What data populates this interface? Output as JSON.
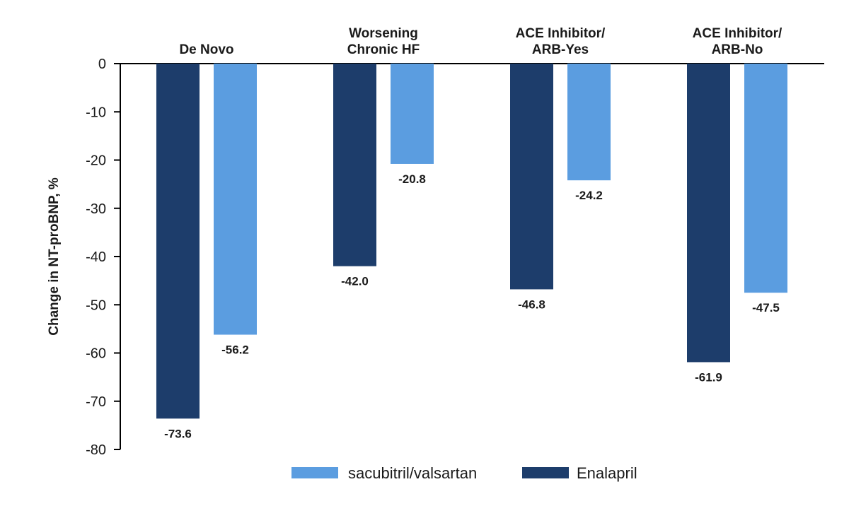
{
  "chart_data": {
    "type": "bar",
    "title": "",
    "xlabel": "",
    "ylabel": "Change in NT-proBNP, %",
    "ylim": [
      -80,
      0
    ],
    "yticks": [
      0,
      -10,
      -20,
      -30,
      -40,
      -50,
      -60,
      -70,
      -80
    ],
    "grid": false,
    "legend_position": "bottom-center",
    "categories": [
      {
        "lines": [
          "De Novo"
        ]
      },
      {
        "lines": [
          "Worsening",
          "Chronic HF"
        ]
      },
      {
        "lines": [
          "ACE Inhibitor/",
          "ARB-Yes"
        ]
      },
      {
        "lines": [
          "ACE Inhibitor/",
          "ARB-No"
        ]
      }
    ],
    "series": [
      {
        "name": "Enalapril",
        "color": "#1d3d6b",
        "values": [
          -73.6,
          -42.0,
          -46.8,
          -61.9
        ],
        "labels": [
          "-73.6",
          "-42.0",
          "-46.8",
          "-61.9"
        ]
      },
      {
        "name": "sacubitril/valsartan",
        "color": "#5b9de0",
        "values": [
          -56.2,
          -20.8,
          -24.2,
          -47.5
        ],
        "labels": [
          "-56.2",
          "-20.8",
          "-24.2",
          "-47.5"
        ]
      }
    ],
    "legend_order": [
      1,
      0
    ]
  }
}
